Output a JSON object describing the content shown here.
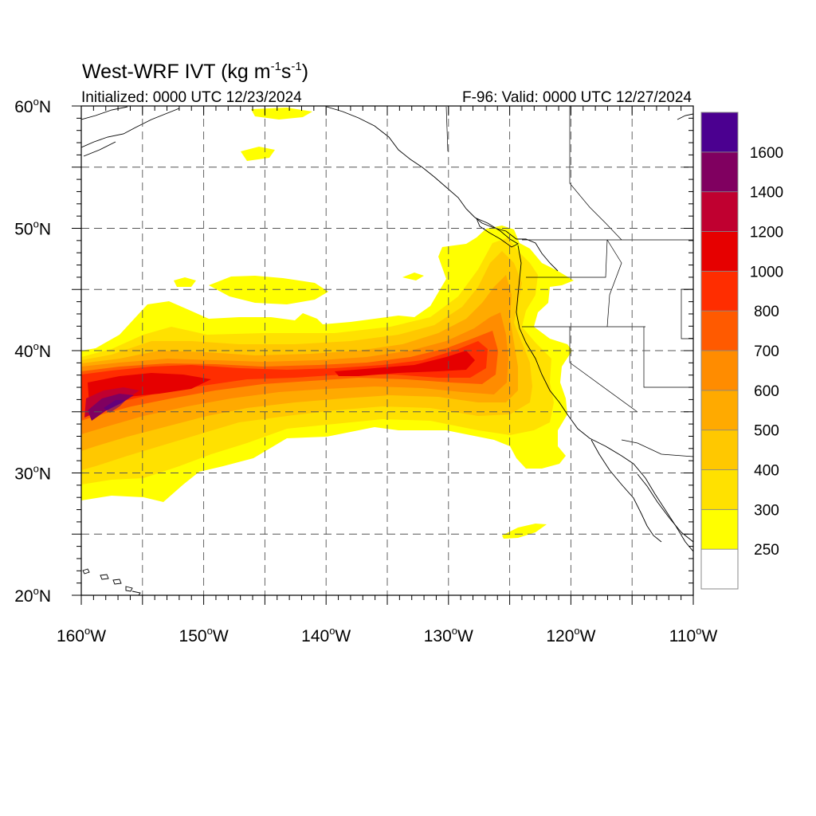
{
  "title": {
    "main": "West-WRF IVT (kg m",
    "sup1": "-1",
    "mid": "s",
    "sup2": "-1",
    "close": ")"
  },
  "initialized": "Initialized: 0000 UTC 12/23/2024",
  "valid": "F-96: Valid: 0000 UTC 12/27/2024",
  "lat_labels": [
    {
      "deg": "60",
      "hemi": "N",
      "value": 60
    },
    {
      "deg": "50",
      "hemi": "N",
      "value": 50
    },
    {
      "deg": "40",
      "hemi": "N",
      "value": 40
    },
    {
      "deg": "30",
      "hemi": "N",
      "value": 30
    },
    {
      "deg": "20",
      "hemi": "N",
      "value": 20
    }
  ],
  "lon_labels": [
    {
      "deg": "160",
      "hemi": "W",
      "value": -160
    },
    {
      "deg": "150",
      "hemi": "W",
      "value": -150
    },
    {
      "deg": "140",
      "hemi": "W",
      "value": -140
    },
    {
      "deg": "130",
      "hemi": "W",
      "value": -130
    },
    {
      "deg": "120",
      "hemi": "W",
      "value": -120
    },
    {
      "deg": "110",
      "hemi": "W",
      "value": -110
    }
  ],
  "map": {
    "lon_range": [
      -160,
      -110
    ],
    "lat_range": [
      20,
      60
    ],
    "gridline_spacing_deg": 5,
    "gridlines": "dashed"
  },
  "colorbar": {
    "labels": [
      "250",
      "300",
      "400",
      "500",
      "600",
      "700",
      "800",
      "1000",
      "1200",
      "1400",
      "1600"
    ],
    "colors": [
      "#ffffff",
      "#ffff00",
      "#ffe100",
      "#ffc800",
      "#ffaa00",
      "#ff8c00",
      "#ff5a00",
      "#ff2d00",
      "#e60000",
      "#c00030",
      "#800060",
      "#4b0090"
    ]
  },
  "ivt_colors": {
    "c250": "#ffff00",
    "c300": "#ffe100",
    "c400": "#ffc800",
    "c500": "#ffaa00",
    "c600": "#ff8c00",
    "c700": "#ff5a00",
    "c800": "#ff2d00",
    "c1000": "#e60000",
    "c1200": "#c00030",
    "c1400": "#800060",
    "c1600": "#4b0090"
  }
}
